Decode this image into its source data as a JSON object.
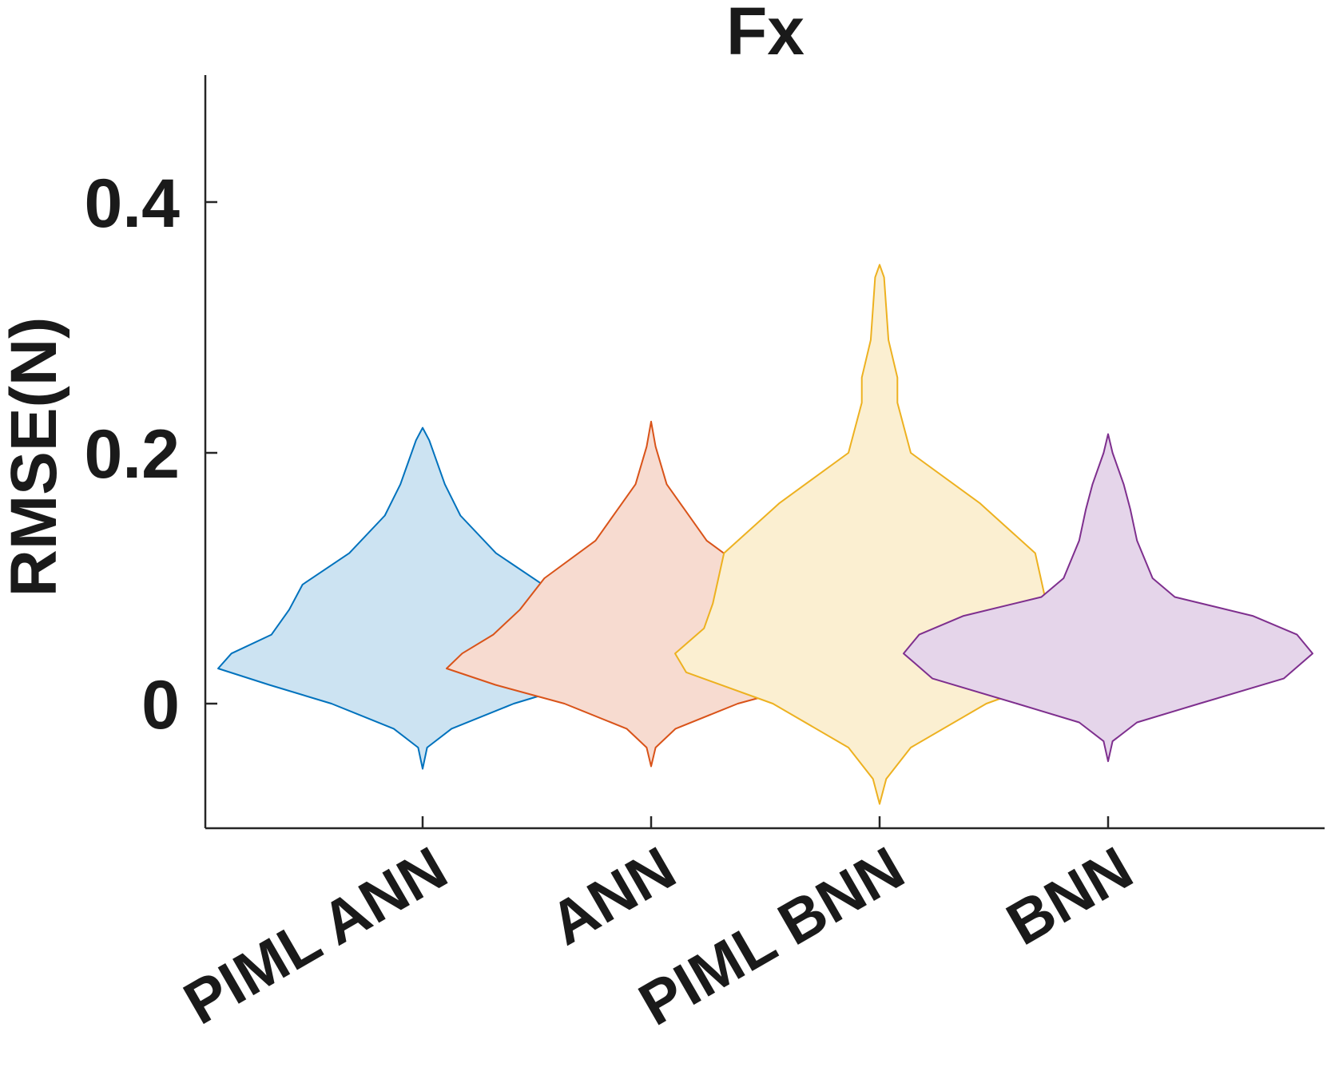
{
  "chart_data": {
    "type": "violin",
    "title": "Fx",
    "ylabel": "RMSE(N)",
    "xlabel": "",
    "ylim": [
      -0.1,
      0.5
    ],
    "yticks": [
      0,
      0.2,
      0.4
    ],
    "ytick_labels": [
      "0",
      "0.2",
      "0.4"
    ],
    "categories": [
      "PIML ANN",
      "ANN",
      "PIML BNN",
      "BNN"
    ],
    "series": [
      {
        "color": "#0072BD",
        "fill": "#CCE3F2",
        "max_width": 0.46,
        "profile": [
          [
            -0.052,
            0.0
          ],
          [
            -0.035,
            0.02
          ],
          [
            -0.02,
            0.13
          ],
          [
            0.0,
            0.41
          ],
          [
            0.015,
            0.69
          ],
          [
            0.028,
            0.92
          ],
          [
            0.04,
            0.86
          ],
          [
            0.055,
            0.68
          ],
          [
            0.075,
            0.6
          ],
          [
            0.095,
            0.54
          ],
          [
            0.12,
            0.33
          ],
          [
            0.15,
            0.17
          ],
          [
            0.175,
            0.1
          ],
          [
            0.21,
            0.03
          ],
          [
            0.22,
            0.0
          ]
        ]
      },
      {
        "color": "#D95319",
        "fill": "#F7DBD0",
        "max_width": 0.46,
        "profile": [
          [
            -0.05,
            0.0
          ],
          [
            -0.035,
            0.02
          ],
          [
            -0.02,
            0.11
          ],
          [
            0.0,
            0.39
          ],
          [
            0.015,
            0.7
          ],
          [
            0.028,
            0.92
          ],
          [
            0.04,
            0.85
          ],
          [
            0.055,
            0.71
          ],
          [
            0.075,
            0.59
          ],
          [
            0.1,
            0.48
          ],
          [
            0.13,
            0.25
          ],
          [
            0.155,
            0.15
          ],
          [
            0.175,
            0.07
          ],
          [
            0.205,
            0.02
          ],
          [
            0.225,
            0.0
          ]
        ]
      },
      {
        "color": "#EDB120",
        "fill": "#FBEFD1",
        "max_width": 0.46,
        "profile": [
          [
            -0.08,
            0.0
          ],
          [
            -0.06,
            0.03
          ],
          [
            -0.035,
            0.14
          ],
          [
            0.0,
            0.48
          ],
          [
            0.025,
            0.87
          ],
          [
            0.04,
            0.92
          ],
          [
            0.06,
            0.79
          ],
          [
            0.08,
            0.75
          ],
          [
            0.12,
            0.7
          ],
          [
            0.16,
            0.45
          ],
          [
            0.2,
            0.14
          ],
          [
            0.24,
            0.08
          ],
          [
            0.26,
            0.08
          ],
          [
            0.29,
            0.04
          ],
          [
            0.34,
            0.02
          ],
          [
            0.35,
            0.0
          ]
        ]
      },
      {
        "color": "#7E2F8E",
        "fill": "#E5D5EA",
        "max_width": 0.46,
        "profile": [
          [
            -0.046,
            0.0
          ],
          [
            -0.03,
            0.02
          ],
          [
            -0.015,
            0.13
          ],
          [
            0.0,
            0.41
          ],
          [
            0.02,
            0.79
          ],
          [
            0.04,
            0.92
          ],
          [
            0.055,
            0.85
          ],
          [
            0.07,
            0.65
          ],
          [
            0.085,
            0.3
          ],
          [
            0.1,
            0.2
          ],
          [
            0.13,
            0.13
          ],
          [
            0.155,
            0.1
          ],
          [
            0.175,
            0.07
          ],
          [
            0.2,
            0.02
          ],
          [
            0.215,
            0.0
          ]
        ]
      }
    ]
  }
}
